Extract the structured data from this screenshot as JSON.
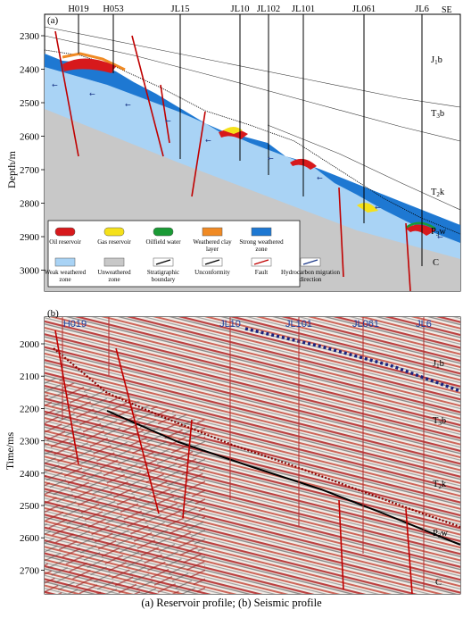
{
  "panel_a": {
    "label": "(a)",
    "y_axis_title": "Depth/m",
    "y_ticks": [
      "2300",
      "2400",
      "2500",
      "2600",
      "2700",
      "2800",
      "2900",
      "3000"
    ],
    "wells": [
      "H019",
      "H053",
      "JL15",
      "JL10",
      "JL102",
      "JL101",
      "JL061",
      "JL6"
    ],
    "direction": "SE",
    "strata": [
      "J1b",
      "T3b",
      "T2k",
      "P3w",
      "C"
    ],
    "legend": [
      {
        "label": "Oil reservoir",
        "color": "#d7191c"
      },
      {
        "label": "Gas reservoir",
        "color": "#f5e11a"
      },
      {
        "label": "Oilfield water",
        "color": "#1a9a35"
      },
      {
        "label": "Weathered clay layer",
        "color": "#f08a24"
      },
      {
        "label": "Strong weathered zone",
        "color": "#1e78d2"
      },
      {
        "label": "Weak weathered zone",
        "color": "#a9d3f5"
      },
      {
        "label": "Unweathered zone",
        "color": "#c8c8c8"
      },
      {
        "label": "Stratigraphic boundary",
        "color": "#000000"
      },
      {
        "label": "Unconformity",
        "color": "#000000"
      },
      {
        "label": "Fault",
        "color": "#c00000"
      },
      {
        "label": "Hydrocarbon migration direction",
        "color": "#1e3a8a"
      }
    ]
  },
  "panel_b": {
    "label": "(b)",
    "y_axis_title": "Time/ms",
    "y_ticks": [
      "2000",
      "2100",
      "2200",
      "2300",
      "2400",
      "2500",
      "2600",
      "2700"
    ],
    "wells": [
      "H019",
      "JL10",
      "JL101",
      "JL061",
      "JL6"
    ],
    "strata": [
      "J1b",
      "T3b",
      "T2k",
      "P3w",
      "C"
    ]
  },
  "caption": "(a)  Reservoir profile;  (b)  Seismic profile"
}
